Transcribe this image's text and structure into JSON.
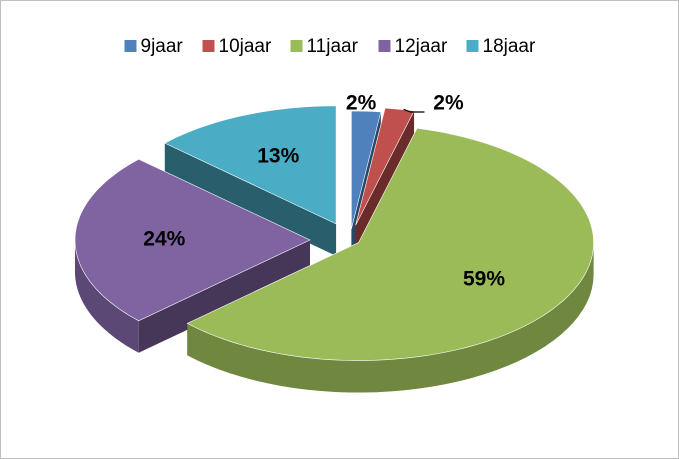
{
  "chart_data": {
    "type": "pie",
    "categories": [
      "9jaar",
      "10jaar",
      "11jaar",
      "12jaar",
      "18jaar"
    ],
    "values": [
      2,
      2,
      59,
      24,
      13
    ],
    "value_labels": [
      "2%",
      "2%",
      "59%",
      "24%",
      "13%"
    ],
    "colors": [
      "#4f81bd",
      "#c0504d",
      "#9bbb59",
      "#8064a2",
      "#4bacc6"
    ],
    "legend": "top"
  }
}
